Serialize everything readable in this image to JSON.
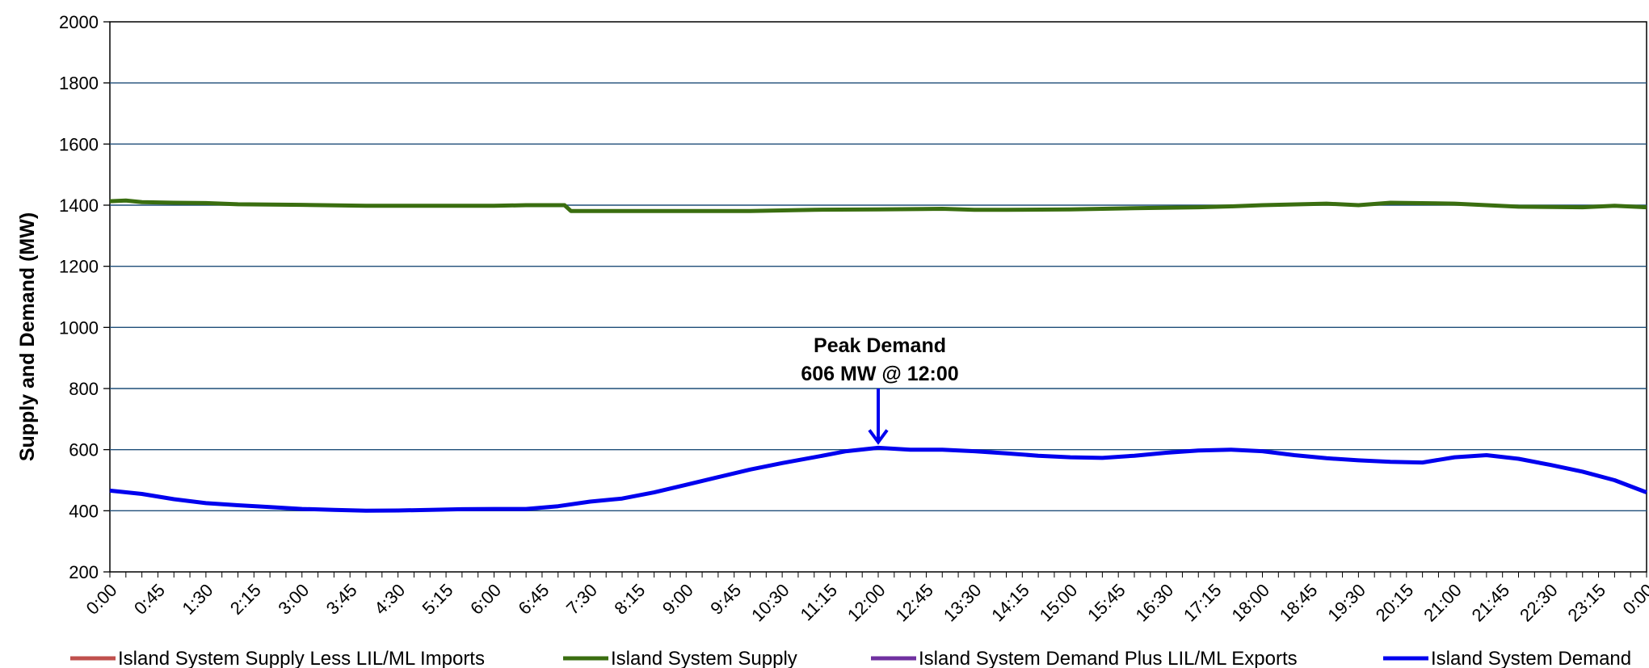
{
  "chart_data": {
    "type": "line",
    "title": "",
    "xlabel": "",
    "ylabel": "Supply and Demand (MW)",
    "ylim": [
      200,
      2000
    ],
    "y_ticks": [
      200,
      400,
      600,
      800,
      1000,
      1200,
      1400,
      1600,
      1800,
      2000
    ],
    "x_tick_labels": [
      "0:00",
      "0:45",
      "1:30",
      "2:15",
      "3:00",
      "3:45",
      "4:30",
      "5:15",
      "6:00",
      "6:45",
      "7:30",
      "8:15",
      "9:00",
      "9:45",
      "10:30",
      "11:15",
      "12:00",
      "12:45",
      "13:30",
      "14:15",
      "15:00",
      "15:45",
      "16:30",
      "17:15",
      "18:00",
      "18:45",
      "19:30",
      "20:15",
      "21:00",
      "21:45",
      "22:30",
      "23:15",
      "0:00"
    ],
    "x_hours_range": [
      0,
      24
    ],
    "grid": "horizontal",
    "legend_position": "bottom",
    "colors": {
      "supply_less_imports": "#c0504d",
      "supply": "#3a6e10",
      "demand_plus_exports": "#7030a0",
      "demand": "#0000ee",
      "grid": "#1f4e79"
    },
    "legend": [
      {
        "label": "Island System Supply Less LIL/ML Imports",
        "color": "#c0504d"
      },
      {
        "label": "Island System Supply",
        "color": "#3a6e10"
      },
      {
        "label": "Island System Demand Plus LIL/ML Exports",
        "color": "#7030a0"
      },
      {
        "label": "Island System Demand",
        "color": "#0000ee"
      }
    ],
    "series": [
      {
        "name": "Island System Supply",
        "color": "#3a6e10",
        "points": [
          [
            0,
            1413
          ],
          [
            0.25,
            1415
          ],
          [
            0.5,
            1410
          ],
          [
            1,
            1408
          ],
          [
            1.5,
            1407
          ],
          [
            2,
            1403
          ],
          [
            2.5,
            1402
          ],
          [
            3,
            1401
          ],
          [
            4,
            1398
          ],
          [
            5,
            1398
          ],
          [
            6,
            1398
          ],
          [
            6.5,
            1400
          ],
          [
            7.1,
            1400
          ],
          [
            7.2,
            1381
          ],
          [
            8,
            1381
          ],
          [
            9,
            1381
          ],
          [
            10,
            1381
          ],
          [
            11,
            1385
          ],
          [
            12,
            1386
          ],
          [
            13,
            1388
          ],
          [
            13.5,
            1385
          ],
          [
            14,
            1385
          ],
          [
            15,
            1386
          ],
          [
            16,
            1390
          ],
          [
            17,
            1393
          ],
          [
            17.5,
            1396
          ],
          [
            18,
            1400
          ],
          [
            19,
            1405
          ],
          [
            19.5,
            1400
          ],
          [
            20,
            1408
          ],
          [
            21,
            1405
          ],
          [
            21.5,
            1400
          ],
          [
            22,
            1395
          ],
          [
            23,
            1393
          ],
          [
            23.5,
            1398
          ],
          [
            24,
            1393
          ]
        ]
      },
      {
        "name": "Island System Demand",
        "color": "#0000ee",
        "points": [
          [
            0,
            466
          ],
          [
            0.5,
            455
          ],
          [
            1,
            438
          ],
          [
            1.5,
            425
          ],
          [
            2,
            418
          ],
          [
            2.5,
            412
          ],
          [
            3,
            406
          ],
          [
            3.5,
            403
          ],
          [
            4,
            400
          ],
          [
            4.5,
            401
          ],
          [
            5,
            403
          ],
          [
            5.5,
            405
          ],
          [
            6,
            406
          ],
          [
            6.5,
            406
          ],
          [
            7,
            415
          ],
          [
            7.5,
            430
          ],
          [
            8,
            440
          ],
          [
            8.5,
            460
          ],
          [
            9,
            485
          ],
          [
            9.5,
            510
          ],
          [
            10,
            535
          ],
          [
            10.5,
            556
          ],
          [
            11,
            575
          ],
          [
            11.5,
            595
          ],
          [
            12,
            606
          ],
          [
            12.5,
            600
          ],
          [
            13,
            600
          ],
          [
            13.5,
            595
          ],
          [
            14,
            588
          ],
          [
            14.5,
            580
          ],
          [
            15,
            575
          ],
          [
            15.5,
            573
          ],
          [
            16,
            580
          ],
          [
            16.5,
            590
          ],
          [
            17,
            597
          ],
          [
            17.5,
            600
          ],
          [
            18,
            595
          ],
          [
            18.5,
            582
          ],
          [
            19,
            572
          ],
          [
            19.5,
            565
          ],
          [
            20,
            560
          ],
          [
            20.5,
            558
          ],
          [
            21,
            575
          ],
          [
            21.5,
            582
          ],
          [
            22,
            570
          ],
          [
            22.5,
            550
          ],
          [
            23,
            528
          ],
          [
            23.5,
            500
          ],
          [
            24,
            460
          ]
        ]
      }
    ],
    "annotation": {
      "line1": "Peak Demand",
      "line2": "606 MW @ 12:00",
      "x": 12,
      "y": 606
    }
  }
}
